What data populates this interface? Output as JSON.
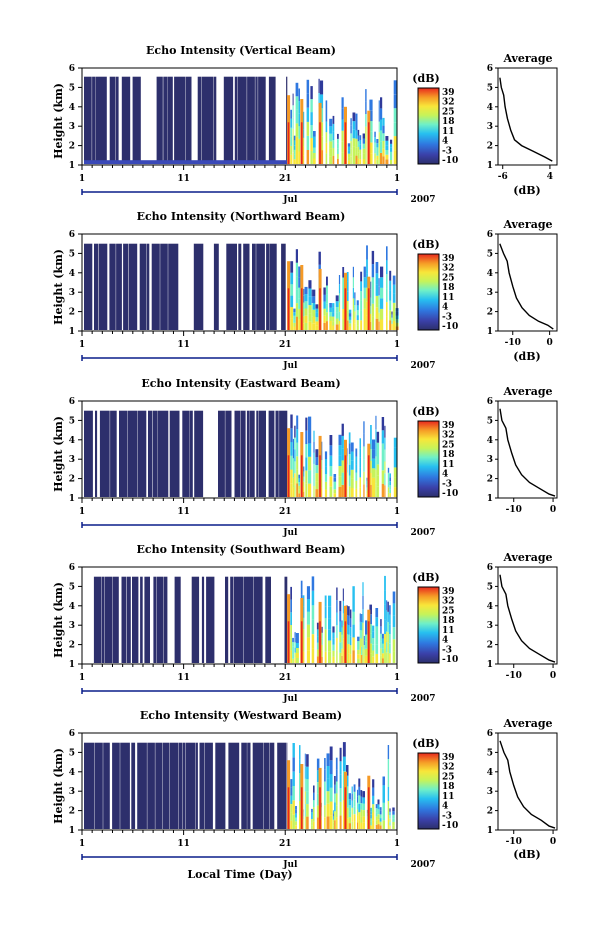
{
  "figure": {
    "xlabel": "Local Time (Day)",
    "month_label": "Jul",
    "year_label": "2007",
    "x_ticks": [
      "1",
      "11",
      "21",
      "1"
    ],
    "y_ticks": [
      "1",
      "2",
      "3",
      "4",
      "5",
      "6"
    ],
    "ylabel": "Height (km)",
    "cbar_unit": "(dB)",
    "avg_title": "Average",
    "avg_xlabel": "(dB)"
  },
  "chart_data": [
    {
      "type": "heatmap",
      "title": "Echo Intensity (Vertical Beam)",
      "ylabel": "Height (km)",
      "ylim": [
        1,
        6
      ],
      "x_ticks": [
        "1",
        "11",
        "21",
        "1"
      ],
      "cbar_ticks": [
        "39",
        "32",
        "25",
        "18",
        "11",
        "4",
        "-3",
        "-10"
      ],
      "average_profile": {
        "title": "Average",
        "xlabel": "(dB)",
        "xlim": [
          -7,
          5.5
        ],
        "x_ticks": [
          "-6",
          "4"
        ],
        "x_tick_values": [
          -6,
          4
        ],
        "ylim": [
          1,
          6
        ],
        "points": [
          [
            -6.6,
            5.5
          ],
          [
            -6.3,
            5.0
          ],
          [
            -5.8,
            4.6
          ],
          [
            -5.5,
            4.0
          ],
          [
            -5.0,
            3.4
          ],
          [
            -4.3,
            2.8
          ],
          [
            -3.5,
            2.3
          ],
          [
            -2.0,
            2.0
          ],
          [
            0.5,
            1.7
          ],
          [
            3.0,
            1.4
          ],
          [
            4.5,
            1.2
          ]
        ]
      }
    },
    {
      "type": "heatmap",
      "title": "Echo Intensity (Northward Beam)",
      "ylabel": "Height (km)",
      "ylim": [
        1,
        6
      ],
      "x_ticks": [
        "1",
        "11",
        "21",
        "1"
      ],
      "cbar_ticks": [
        "39",
        "32",
        "25",
        "18",
        "11",
        "4",
        "-3",
        "-10"
      ],
      "average_profile": {
        "title": "Average",
        "xlabel": "(dB)",
        "xlim": [
          -14,
          2
        ],
        "x_ticks": [
          "-10",
          "0"
        ],
        "x_tick_values": [
          -10,
          0
        ],
        "ylim": [
          1,
          6
        ],
        "points": [
          [
            -13.5,
            5.5
          ],
          [
            -12.5,
            5.0
          ],
          [
            -11.5,
            4.6
          ],
          [
            -11.0,
            4.0
          ],
          [
            -10.0,
            3.3
          ],
          [
            -9.0,
            2.7
          ],
          [
            -7.5,
            2.2
          ],
          [
            -5.5,
            1.8
          ],
          [
            -3.0,
            1.5
          ],
          [
            -0.5,
            1.3
          ],
          [
            1.0,
            1.1
          ]
        ]
      }
    },
    {
      "type": "heatmap",
      "title": "Echo Intensity (Eastward Beam)",
      "ylabel": "Height (km)",
      "ylim": [
        1,
        6
      ],
      "x_ticks": [
        "1",
        "11",
        "21",
        "1"
      ],
      "cbar_ticks": [
        "39",
        "32",
        "25",
        "18",
        "11",
        "4",
        "-3",
        "-10"
      ],
      "average_profile": {
        "title": "Average",
        "xlabel": "",
        "xlim": [
          -14,
          1
        ],
        "x_ticks": [
          "-10",
          "0"
        ],
        "x_tick_values": [
          -10,
          0
        ],
        "ylim": [
          1,
          6
        ],
        "points": [
          [
            -13.5,
            5.6
          ],
          [
            -13.0,
            5.0
          ],
          [
            -12.0,
            4.6
          ],
          [
            -11.5,
            4.0
          ],
          [
            -10.5,
            3.3
          ],
          [
            -9.5,
            2.7
          ],
          [
            -8.0,
            2.2
          ],
          [
            -6.0,
            1.8
          ],
          [
            -3.5,
            1.5
          ],
          [
            -1.0,
            1.2
          ],
          [
            0.5,
            1.1
          ]
        ]
      }
    },
    {
      "type": "heatmap",
      "title": "Echo Intensity (Southward Beam)",
      "ylabel": "Height (km)",
      "ylim": [
        1,
        6
      ],
      "x_ticks": [
        "1",
        "11",
        "21",
        "1"
      ],
      "cbar_ticks": [
        "39",
        "32",
        "25",
        "18",
        "11",
        "4",
        "-3",
        "-10"
      ],
      "average_profile": {
        "title": "Average",
        "xlabel": "",
        "xlim": [
          -14,
          1
        ],
        "x_ticks": [
          "-10",
          "0"
        ],
        "x_tick_values": [
          -10,
          0
        ],
        "ylim": [
          1,
          6
        ],
        "points": [
          [
            -13.5,
            5.6
          ],
          [
            -13.0,
            5.0
          ],
          [
            -12.0,
            4.6
          ],
          [
            -11.5,
            4.0
          ],
          [
            -10.5,
            3.3
          ],
          [
            -9.5,
            2.7
          ],
          [
            -8.0,
            2.2
          ],
          [
            -6.0,
            1.8
          ],
          [
            -3.5,
            1.5
          ],
          [
            -1.0,
            1.2
          ],
          [
            0.5,
            1.1
          ]
        ]
      }
    },
    {
      "type": "heatmap",
      "title": "Echo Intensity (Westward Beam)",
      "ylabel": "Height (km)",
      "ylim": [
        1,
        6
      ],
      "x_ticks": [
        "1",
        "11",
        "21",
        "1"
      ],
      "cbar_ticks": [
        "39",
        "32",
        "25",
        "18",
        "11",
        "4",
        "-3",
        "-10"
      ],
      "average_profile": {
        "title": "Average",
        "xlabel": "(dB)",
        "xlim": [
          -14,
          1
        ],
        "x_ticks": [
          "-10",
          "0"
        ],
        "x_tick_values": [
          -10,
          0
        ],
        "ylim": [
          1,
          6
        ],
        "points": [
          [
            -13.5,
            5.6
          ],
          [
            -12.5,
            5.0
          ],
          [
            -11.5,
            4.6
          ],
          [
            -11.0,
            4.0
          ],
          [
            -10.0,
            3.3
          ],
          [
            -9.0,
            2.7
          ],
          [
            -7.5,
            2.2
          ],
          [
            -5.5,
            1.8
          ],
          [
            -3.0,
            1.5
          ],
          [
            -1.0,
            1.2
          ],
          [
            0.5,
            1.1
          ]
        ]
      }
    }
  ]
}
